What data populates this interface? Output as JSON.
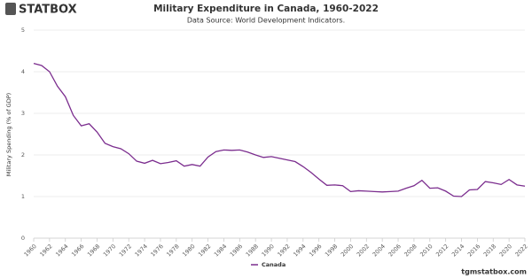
{
  "header": {
    "logo": "STATBOX"
  },
  "footer": "tgmstatbox.com",
  "chart_data": {
    "type": "line",
    "title": "Military Expenditure in Canada, 1960-2022",
    "subtitle": "Data Source: World Development Indicators.",
    "y_label": "Military Spending (% of GDP)",
    "x": [
      1960,
      1961,
      1962,
      1963,
      1964,
      1965,
      1966,
      1967,
      1968,
      1969,
      1970,
      1971,
      1972,
      1973,
      1974,
      1975,
      1976,
      1977,
      1978,
      1979,
      1980,
      1981,
      1982,
      1983,
      1984,
      1985,
      1986,
      1987,
      1988,
      1989,
      1990,
      1991,
      1992,
      1993,
      1994,
      1995,
      1996,
      1997,
      1998,
      1999,
      2000,
      2001,
      2002,
      2003,
      2004,
      2005,
      2006,
      2007,
      2008,
      2009,
      2010,
      2011,
      2012,
      2013,
      2014,
      2015,
      2016,
      2017,
      2018,
      2019,
      2020,
      2021,
      2022
    ],
    "series": [
      {
        "name": "Canada",
        "color": "#7b2d8e",
        "values": [
          4.2,
          4.15,
          4.0,
          3.65,
          3.4,
          2.95,
          2.7,
          2.75,
          2.55,
          2.28,
          2.2,
          2.15,
          2.03,
          1.85,
          1.8,
          1.87,
          1.79,
          1.82,
          1.86,
          1.73,
          1.77,
          1.73,
          1.95,
          2.08,
          2.12,
          2.11,
          2.12,
          2.07,
          2.0,
          1.94,
          1.96,
          1.92,
          1.88,
          1.84,
          1.72,
          1.58,
          1.42,
          1.27,
          1.28,
          1.26,
          1.12,
          1.14,
          1.13,
          1.12,
          1.11,
          1.12,
          1.13,
          1.2,
          1.26,
          1.39,
          1.2,
          1.21,
          1.13,
          1.01,
          1.0,
          1.16,
          1.17,
          1.36,
          1.33,
          1.29,
          1.41,
          1.28,
          1.25
        ]
      }
    ],
    "xlim": [
      1960,
      2022
    ],
    "xticks": [
      1960,
      1962,
      1964,
      1966,
      1968,
      1970,
      1972,
      1974,
      1976,
      1978,
      1980,
      1982,
      1984,
      1986,
      1988,
      1990,
      1992,
      1994,
      1996,
      1998,
      2000,
      2002,
      2004,
      2006,
      2008,
      2010,
      2012,
      2014,
      2016,
      2018,
      2020,
      2022
    ],
    "ylim": [
      0,
      5
    ],
    "yticks": [
      0,
      1,
      2,
      3,
      4,
      5
    ],
    "grid": true
  }
}
